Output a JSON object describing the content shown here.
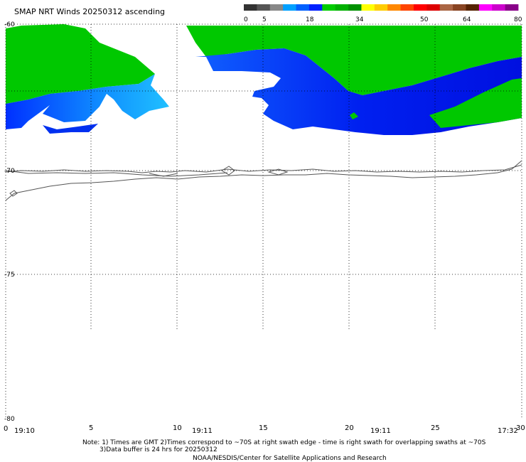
{
  "title": "SMAP NRT Winds 20250312 ascending",
  "colorbar": {
    "labels": [
      "0",
      "5",
      "18",
      "34",
      "50",
      "64",
      "80"
    ],
    "segments": [
      {
        "color": "#333333"
      },
      {
        "color": "#555555"
      },
      {
        "color": "#888888"
      },
      {
        "color": "#00a0ff"
      },
      {
        "color": "#0060ff"
      },
      {
        "color": "#0020ff"
      },
      {
        "color": "#00cc00"
      },
      {
        "color": "#00b000"
      },
      {
        "color": "#009000"
      },
      {
        "color": "#ffff00"
      },
      {
        "color": "#ffcc00"
      },
      {
        "color": "#ff8800"
      },
      {
        "color": "#ff4400"
      },
      {
        "color": "#ff0000"
      },
      {
        "color": "#dd0000"
      },
      {
        "color": "#aa6644"
      },
      {
        "color": "#884422"
      },
      {
        "color": "#552200"
      },
      {
        "color": "#ff00ff"
      },
      {
        "color": "#cc00cc"
      },
      {
        "color": "#880088"
      }
    ]
  },
  "axes": {
    "y_labels": [
      "-60",
      "-70",
      "-75",
      "-80"
    ],
    "x_labels": [
      "0",
      "5",
      "10",
      "15",
      "20",
      "25",
      "30"
    ],
    "times": [
      "19:10",
      "19:11",
      "19:11",
      "17:32"
    ]
  },
  "notes": {
    "line1": "Note: 1) Times are GMT 2)Times correspond to ~70S at right swath edge - time is right swath for overlapping swaths at ~70S",
    "line2": "3)Data buffer is 24 hrs for 20250312",
    "line3": "NOAA/NESDIS/Center for Satellite Applications and Research"
  },
  "colors": {
    "green": "#00c800",
    "blue_dark": "#0010f0",
    "blue_mid": "#0050ff",
    "blue_light": "#10b0ff",
    "coast": "#555555",
    "grid": "#000000"
  }
}
